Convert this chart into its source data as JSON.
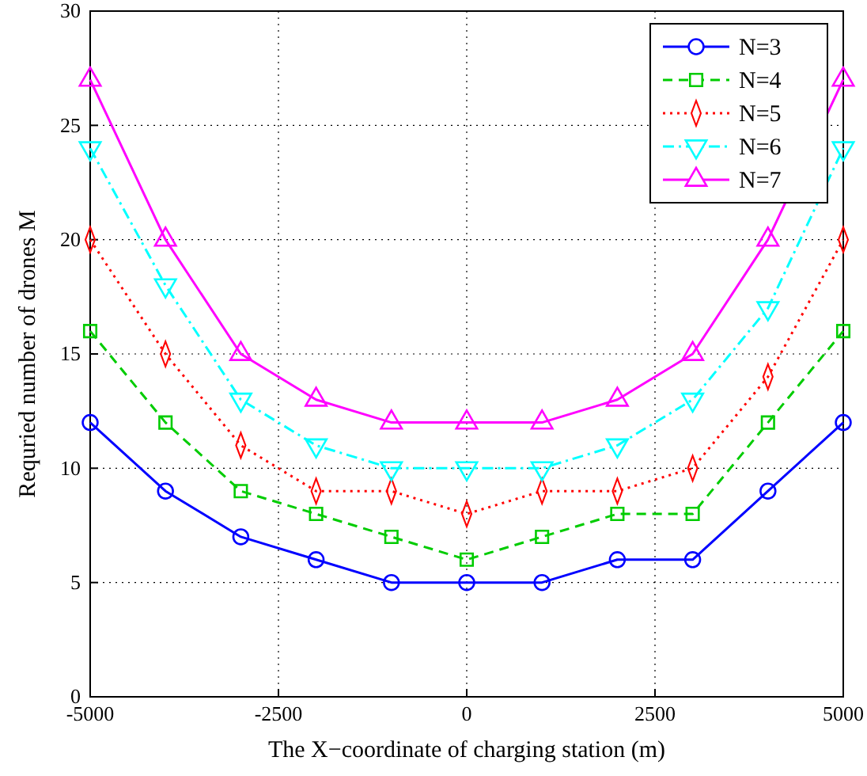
{
  "chart_data": {
    "type": "line",
    "xlabel": "The X−coordinate of charging station (m)",
    "ylabel": "Requried number of drones  M",
    "x": [
      -5000,
      -4000,
      -3000,
      -2000,
      -1000,
      0,
      1000,
      2000,
      3000,
      4000,
      5000
    ],
    "xlim": [
      -5000,
      5000
    ],
    "xticks": [
      -5000,
      -2500,
      0,
      2500,
      5000
    ],
    "ylim": [
      0,
      30
    ],
    "yticks": [
      0,
      5,
      10,
      15,
      20,
      25,
      30
    ],
    "grid": true,
    "legend": "top right",
    "series": [
      {
        "name": "N=3",
        "color": "#0000ff",
        "marker": "circle",
        "line_style": "solid",
        "values": [
          12,
          9,
          7,
          6,
          5,
          5,
          5,
          6,
          6,
          9,
          12
        ]
      },
      {
        "name": "N=4",
        "color": "#00cc00",
        "marker": "square",
        "line_style": "dashed",
        "values": [
          16,
          12,
          9,
          8,
          7,
          6,
          7,
          8,
          8,
          12,
          16
        ]
      },
      {
        "name": "N=5",
        "color": "#ff0000",
        "marker": "diamond",
        "line_style": "dotted",
        "values": [
          20,
          15,
          11,
          9,
          9,
          8,
          9,
          9,
          10,
          14,
          20
        ]
      },
      {
        "name": "N=6",
        "color": "#00ffff",
        "marker": "triangle-down",
        "line_style": "dashdot",
        "values": [
          24,
          18,
          13,
          11,
          10,
          10,
          10,
          11,
          13,
          17,
          24
        ]
      },
      {
        "name": "N=7",
        "color": "#ff00ff",
        "marker": "triangle",
        "line_style": "solid",
        "values": [
          27,
          20,
          15,
          13,
          12,
          12,
          12,
          13,
          15,
          20,
          27
        ]
      }
    ]
  }
}
